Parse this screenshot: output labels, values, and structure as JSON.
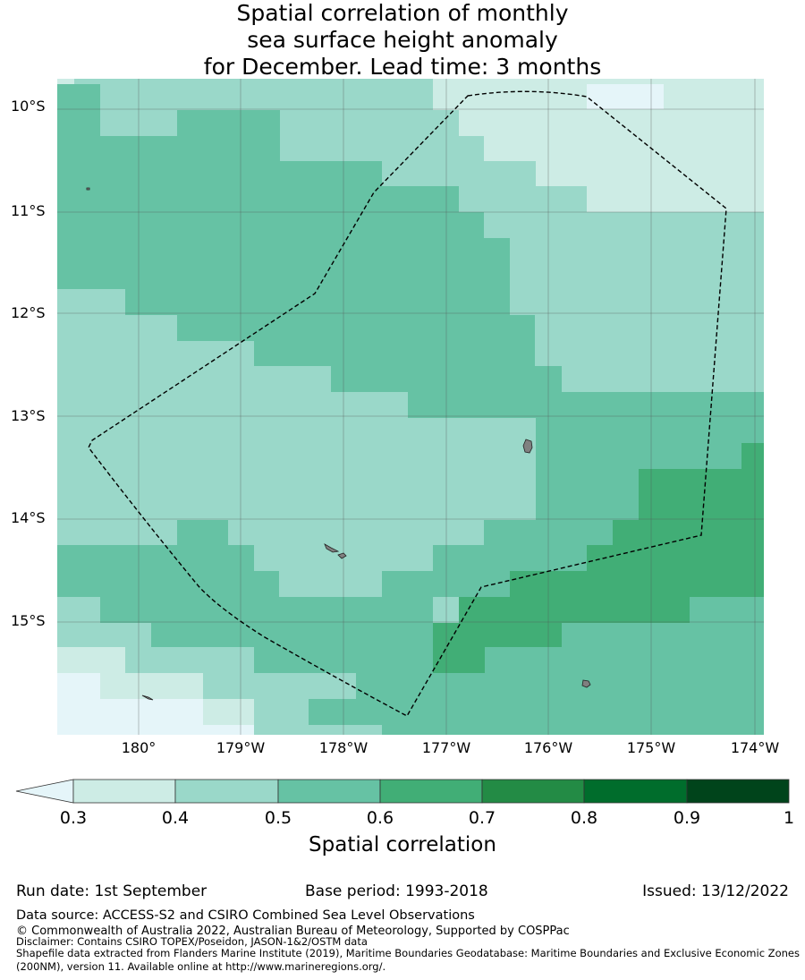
{
  "title": {
    "line1": "Spatial correlation of monthly",
    "line2": "sea surface height anomaly",
    "line3": "for December. Lead time: 3 months"
  },
  "map": {
    "lat_labels": [
      "10°S",
      "11°S",
      "12°S",
      "13°S",
      "14°S",
      "15°S"
    ],
    "lon_labels": [
      "180°",
      "179°W",
      "178°W",
      "177°W",
      "176°W",
      "175°W",
      "174°W"
    ]
  },
  "colorbar": {
    "label": "Spatial correlation",
    "ticks": [
      "0.3",
      "0.4",
      "0.5",
      "0.6",
      "0.7",
      "0.8",
      "0.9",
      "1"
    ],
    "colors": [
      "#cdece5",
      "#9ad8c9",
      "#66c2a4",
      "#41ae76",
      "#238b45",
      "#006d2c",
      "#00441b"
    ],
    "under_color": "#e5f5f9"
  },
  "meta": {
    "run_date": "Run date: 1st September",
    "base_period": "Base period: 1993-2018",
    "issued": "Issued: 13/12/2022"
  },
  "footer": {
    "data_source": "Data source: ACCESS-S2 and CSIRO Combined Sea Level Observations",
    "copyright": "© Commonwealth of Australia 2022, Australian Bureau of Meteorology, Supported by COSPPac",
    "disclaimer": "Disclaimer: Contains CSIRO TOPEX/Poseidon, JASON-1&2/OSTM data",
    "shapefile": "Shapefile data extracted from Flanders Marine Institute (2019), Maritime Boundaries Geodatabase: Maritime Boundaries and Exclusive Economic Zones (200NM), version 11. Available online at http://www.marineregions.org/."
  }
}
